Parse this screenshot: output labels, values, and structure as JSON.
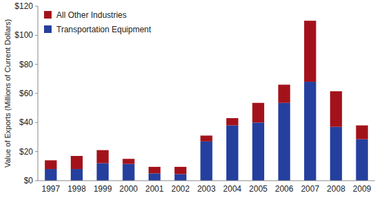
{
  "chart_data": {
    "type": "bar",
    "stacked": true,
    "grid": false,
    "legend": "upper left",
    "y_label": "Value of Exports (Millions of Current Dollars)",
    "categories": [
      "1997",
      "1998",
      "1999",
      "2000",
      "2001",
      "2002",
      "2003",
      "2004",
      "2005",
      "2006",
      "2007",
      "2008",
      "2009"
    ],
    "series": [
      {
        "name": "Transportation Equipment",
        "color": "#243f9e",
        "values": [
          8,
          8,
          12,
          11.5,
          5,
          4.5,
          27,
          38,
          40,
          53.5,
          68,
          37,
          28.5
        ]
      },
      {
        "name": "All Other Industries",
        "color": "#a3121b",
        "values": [
          6,
          9,
          9,
          3.5,
          4.5,
          5,
          4,
          5,
          13.5,
          12.5,
          42,
          24.5,
          9.5
        ]
      }
    ],
    "ylim": [
      0,
      120
    ],
    "yticks": [
      {
        "value": 0,
        "label": "$0"
      },
      {
        "value": 20,
        "label": "$20"
      },
      {
        "value": 40,
        "label": "$40"
      },
      {
        "value": 60,
        "label": "$60"
      },
      {
        "value": 80,
        "label": "$80"
      },
      {
        "value": 100,
        "label": "$100"
      },
      {
        "value": 120,
        "label": "$120"
      }
    ]
  }
}
